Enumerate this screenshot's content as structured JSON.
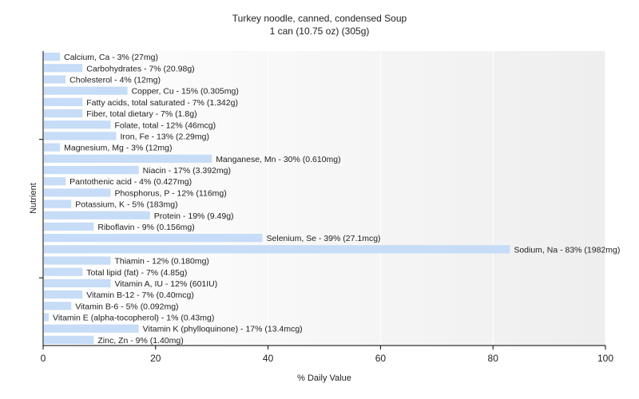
{
  "chart_data": {
    "type": "bar",
    "orientation": "horizontal",
    "title": "Turkey noodle, canned, condensed Soup",
    "subtitle": "1 can (10.75 oz) (305g)",
    "xlabel": "% Daily Value",
    "ylabel": "Nutrient",
    "xlim": [
      0,
      100
    ],
    "xticks": [
      "0",
      "20",
      "40",
      "60",
      "80",
      "100"
    ],
    "grid": true,
    "bar_color": "#c6dcf7",
    "categories": [
      "Calcium, Ca",
      "Carbohydrates",
      "Cholesterol",
      "Copper, Cu",
      "Fatty acids, total saturated",
      "Fiber, total dietary",
      "Folate, total",
      "Iron, Fe",
      "Magnesium, Mg",
      "Manganese, Mn",
      "Niacin",
      "Pantothenic acid",
      "Phosphorus, P",
      "Potassium, K",
      "Protein",
      "Riboflavin",
      "Selenium, Se",
      "Sodium, Na",
      "Thiamin",
      "Total lipid (fat)",
      "Vitamin A, IU",
      "Vitamin B-12",
      "Vitamin B-6",
      "Vitamin E (alpha-tocopherol)",
      "Vitamin K (phylloquinone)",
      "Zinc, Zn"
    ],
    "values": [
      3,
      7,
      4,
      15,
      7,
      7,
      12,
      13,
      3,
      30,
      17,
      4,
      12,
      5,
      19,
      9,
      39,
      83,
      12,
      7,
      12,
      7,
      5,
      1,
      17,
      9
    ],
    "labels": [
      "Calcium, Ca - 3% (27mg)",
      "Carbohydrates - 7% (20.98g)",
      "Cholesterol - 4% (12mg)",
      "Copper, Cu - 15% (0.305mg)",
      "Fatty acids, total saturated - 7% (1.342g)",
      "Fiber, total dietary - 7% (1.8g)",
      "Folate, total - 12% (46mcg)",
      "Iron, Fe - 13% (2.29mg)",
      "Magnesium, Mg - 3% (12mg)",
      "Manganese, Mn - 30% (0.610mg)",
      "Niacin - 17% (3.392mg)",
      "Pantothenic acid - 4% (0.427mg)",
      "Phosphorus, P - 12% (116mg)",
      "Potassium, K - 5% (183mg)",
      "Protein - 19% (9.49g)",
      "Riboflavin - 9% (0.156mg)",
      "Selenium, Se - 39% (27.1mcg)",
      "Sodium, Na - 83% (1982mg)",
      "Thiamin - 12% (0.180mg)",
      "Total lipid (fat) - 7% (4.85g)",
      "Vitamin A, IU - 12% (601IU)",
      "Vitamin B-12 - 7% (0.40mcg)",
      "Vitamin B-6 - 5% (0.092mg)",
      "Vitamin E (alpha-tocopherol) - 1% (0.43mg)",
      "Vitamin K (phylloquinone) - 17% (13.4mcg)",
      "Zinc, Zn - 9% (1.40mg)"
    ]
  }
}
